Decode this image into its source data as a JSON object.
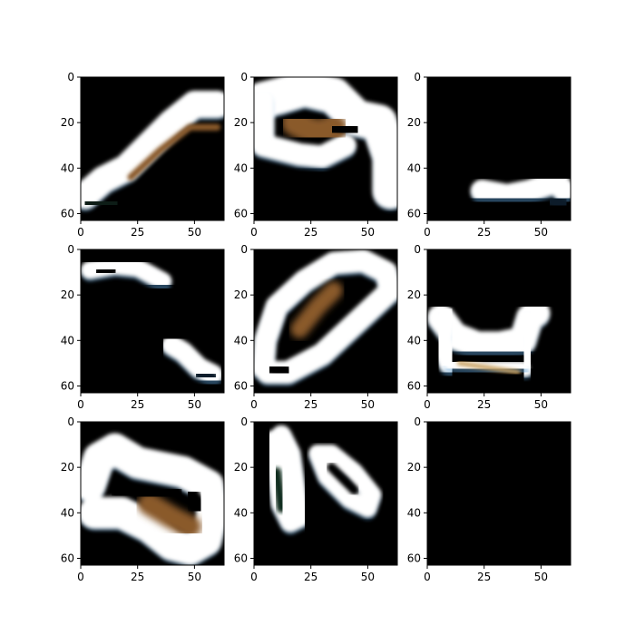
{
  "chart_data": {
    "type": "heatmap",
    "layout": "3x3 grid of image panels",
    "image_extent": [
      0,
      63
    ],
    "x_ticks": [
      "0",
      "25",
      "50"
    ],
    "y_ticks": [
      "0",
      "20",
      "40",
      "60"
    ],
    "colors": {
      "background": "#000000",
      "blob": "#ffffff",
      "brown": "#8a5a2a",
      "fringe_a": "#5a9cd2",
      "fringe_b": "#c8a060"
    },
    "panels": [
      {
        "id": 1,
        "content": "diagonal white blob from lower-left to upper-right"
      },
      {
        "id": 2,
        "content": "large white arch with brown interior"
      },
      {
        "id": 3,
        "content": "small white blob at bottom-right"
      },
      {
        "id": 4,
        "content": "two small white blobs, top-left and bottom-right"
      },
      {
        "id": 5,
        "content": "diagonal white loop with brown interior"
      },
      {
        "id": 6,
        "content": "white U-shaped blob"
      },
      {
        "id": 7,
        "content": "large white blob with brown interior"
      },
      {
        "id": 8,
        "content": "white vertical pill and diagonal pill"
      },
      {
        "id": 9,
        "content": "empty black image"
      }
    ]
  }
}
